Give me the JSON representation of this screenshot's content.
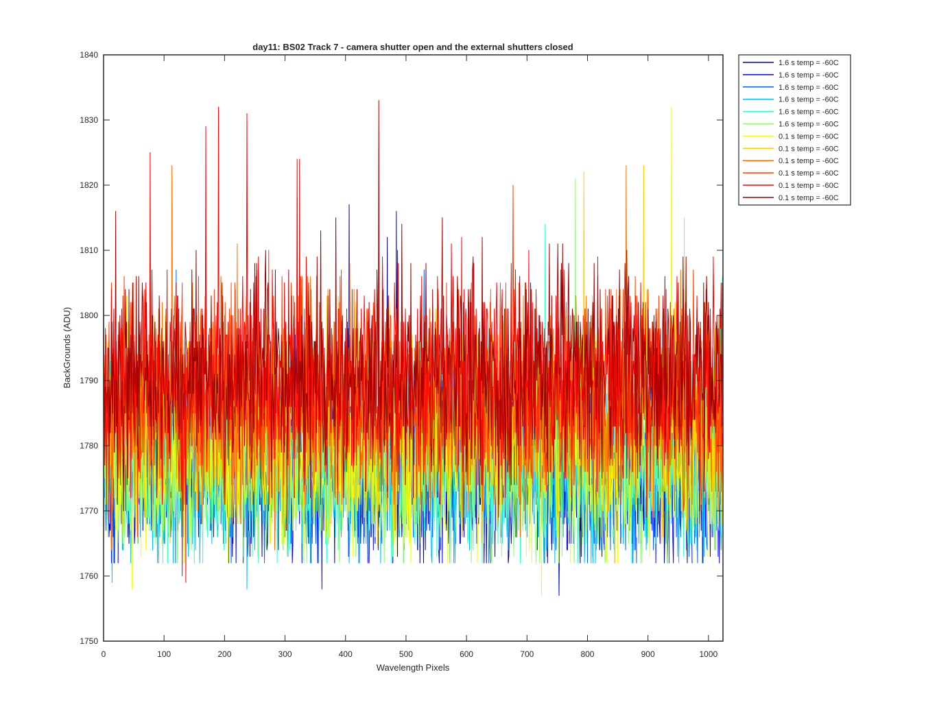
{
  "chart_data": {
    "type": "line",
    "title": "day11: BS02  Track 7 - camera shutter open and the external shutters closed",
    "xlabel": "Wavelength Pixels",
    "ylabel": "BackGrounds (ADU)",
    "xlim": [
      0,
      1024
    ],
    "ylim": [
      1750,
      1840
    ],
    "xticks": [
      0,
      100,
      200,
      300,
      400,
      500,
      600,
      700,
      800,
      900,
      1000
    ],
    "yticks": [
      1750,
      1760,
      1770,
      1780,
      1790,
      1800,
      1810,
      1820,
      1830,
      1840
    ],
    "grid": false,
    "legend_position": "outside-top-right",
    "n_points": 1024,
    "series": [
      {
        "name": "1.6 s temp = -60C",
        "color": "#00008f",
        "mean": 1777,
        "std": 7,
        "peaks": [
          [
            406,
            1817
          ],
          [
            469,
            1812
          ]
        ]
      },
      {
        "name": "1.6 s temp = -60C",
        "color": "#0000ef",
        "mean": 1777,
        "std": 7,
        "peaks": [
          [
            484,
            1816
          ],
          [
            753,
            1757
          ],
          [
            361,
            1758
          ]
        ]
      },
      {
        "name": "1.6 s temp = -60C",
        "color": "#005fff",
        "mean": 1777,
        "std": 7,
        "peaks": [
          [
            120,
            1807
          ],
          [
            530,
            1807
          ]
        ]
      },
      {
        "name": "1.6 s temp = -60C",
        "color": "#00bfff",
        "mean": 1777,
        "std": 7,
        "peaks": [
          [
            14,
            1759
          ],
          [
            237,
            1758
          ]
        ]
      },
      {
        "name": "1.6 s temp = -60C",
        "color": "#2fffcf",
        "mean": 1777,
        "std": 7,
        "peaks": [
          [
            730,
            1814
          ],
          [
            1030,
            1806
          ]
        ]
      },
      {
        "name": "1.6 s temp = -60C",
        "color": "#8fff6f",
        "mean": 1777,
        "std": 7,
        "peaks": [
          [
            780,
            1821
          ],
          [
            960,
            1815
          ]
        ]
      },
      {
        "name": "0.1 s temp = -60C",
        "color": "#efff0f",
        "mean": 1780,
        "std": 8,
        "peaks": [
          [
            939,
            1832
          ],
          [
            724,
            1757
          ],
          [
            47,
            1758
          ]
        ]
      },
      {
        "name": "0.1 s temp = -60C",
        "color": "#ffcf00",
        "mean": 1784,
        "std": 8,
        "peaks": [
          [
            794,
            1822
          ],
          [
            893,
            1823
          ]
        ]
      },
      {
        "name": "0.1 s temp = -60C",
        "color": "#ff6f00",
        "mean": 1786,
        "std": 8,
        "peaks": [
          [
            113,
            1823
          ],
          [
            864,
            1823
          ]
        ]
      },
      {
        "name": "0.1 s temp = -60C",
        "color": "#ff4000",
        "mean": 1788,
        "std": 8,
        "peaks": [
          [
            677,
            1820
          ],
          [
            320,
            1818
          ]
        ]
      },
      {
        "name": "0.1 s temp = -60C",
        "color": "#ff0000",
        "mean": 1790,
        "std": 8,
        "peaks": [
          [
            190,
            1832
          ],
          [
            237,
            1831
          ],
          [
            169,
            1829
          ],
          [
            77,
            1825
          ],
          [
            320,
            1824
          ],
          [
            324,
            1824
          ],
          [
            130,
            1760
          ],
          [
            136,
            1759
          ]
        ]
      },
      {
        "name": "0.1 s temp = -60C",
        "color": "#a00000",
        "mean": 1791,
        "std": 8,
        "peaks": [
          [
            455,
            1833
          ],
          [
            20,
            1816
          ],
          [
            560,
            1815
          ]
        ]
      }
    ]
  }
}
